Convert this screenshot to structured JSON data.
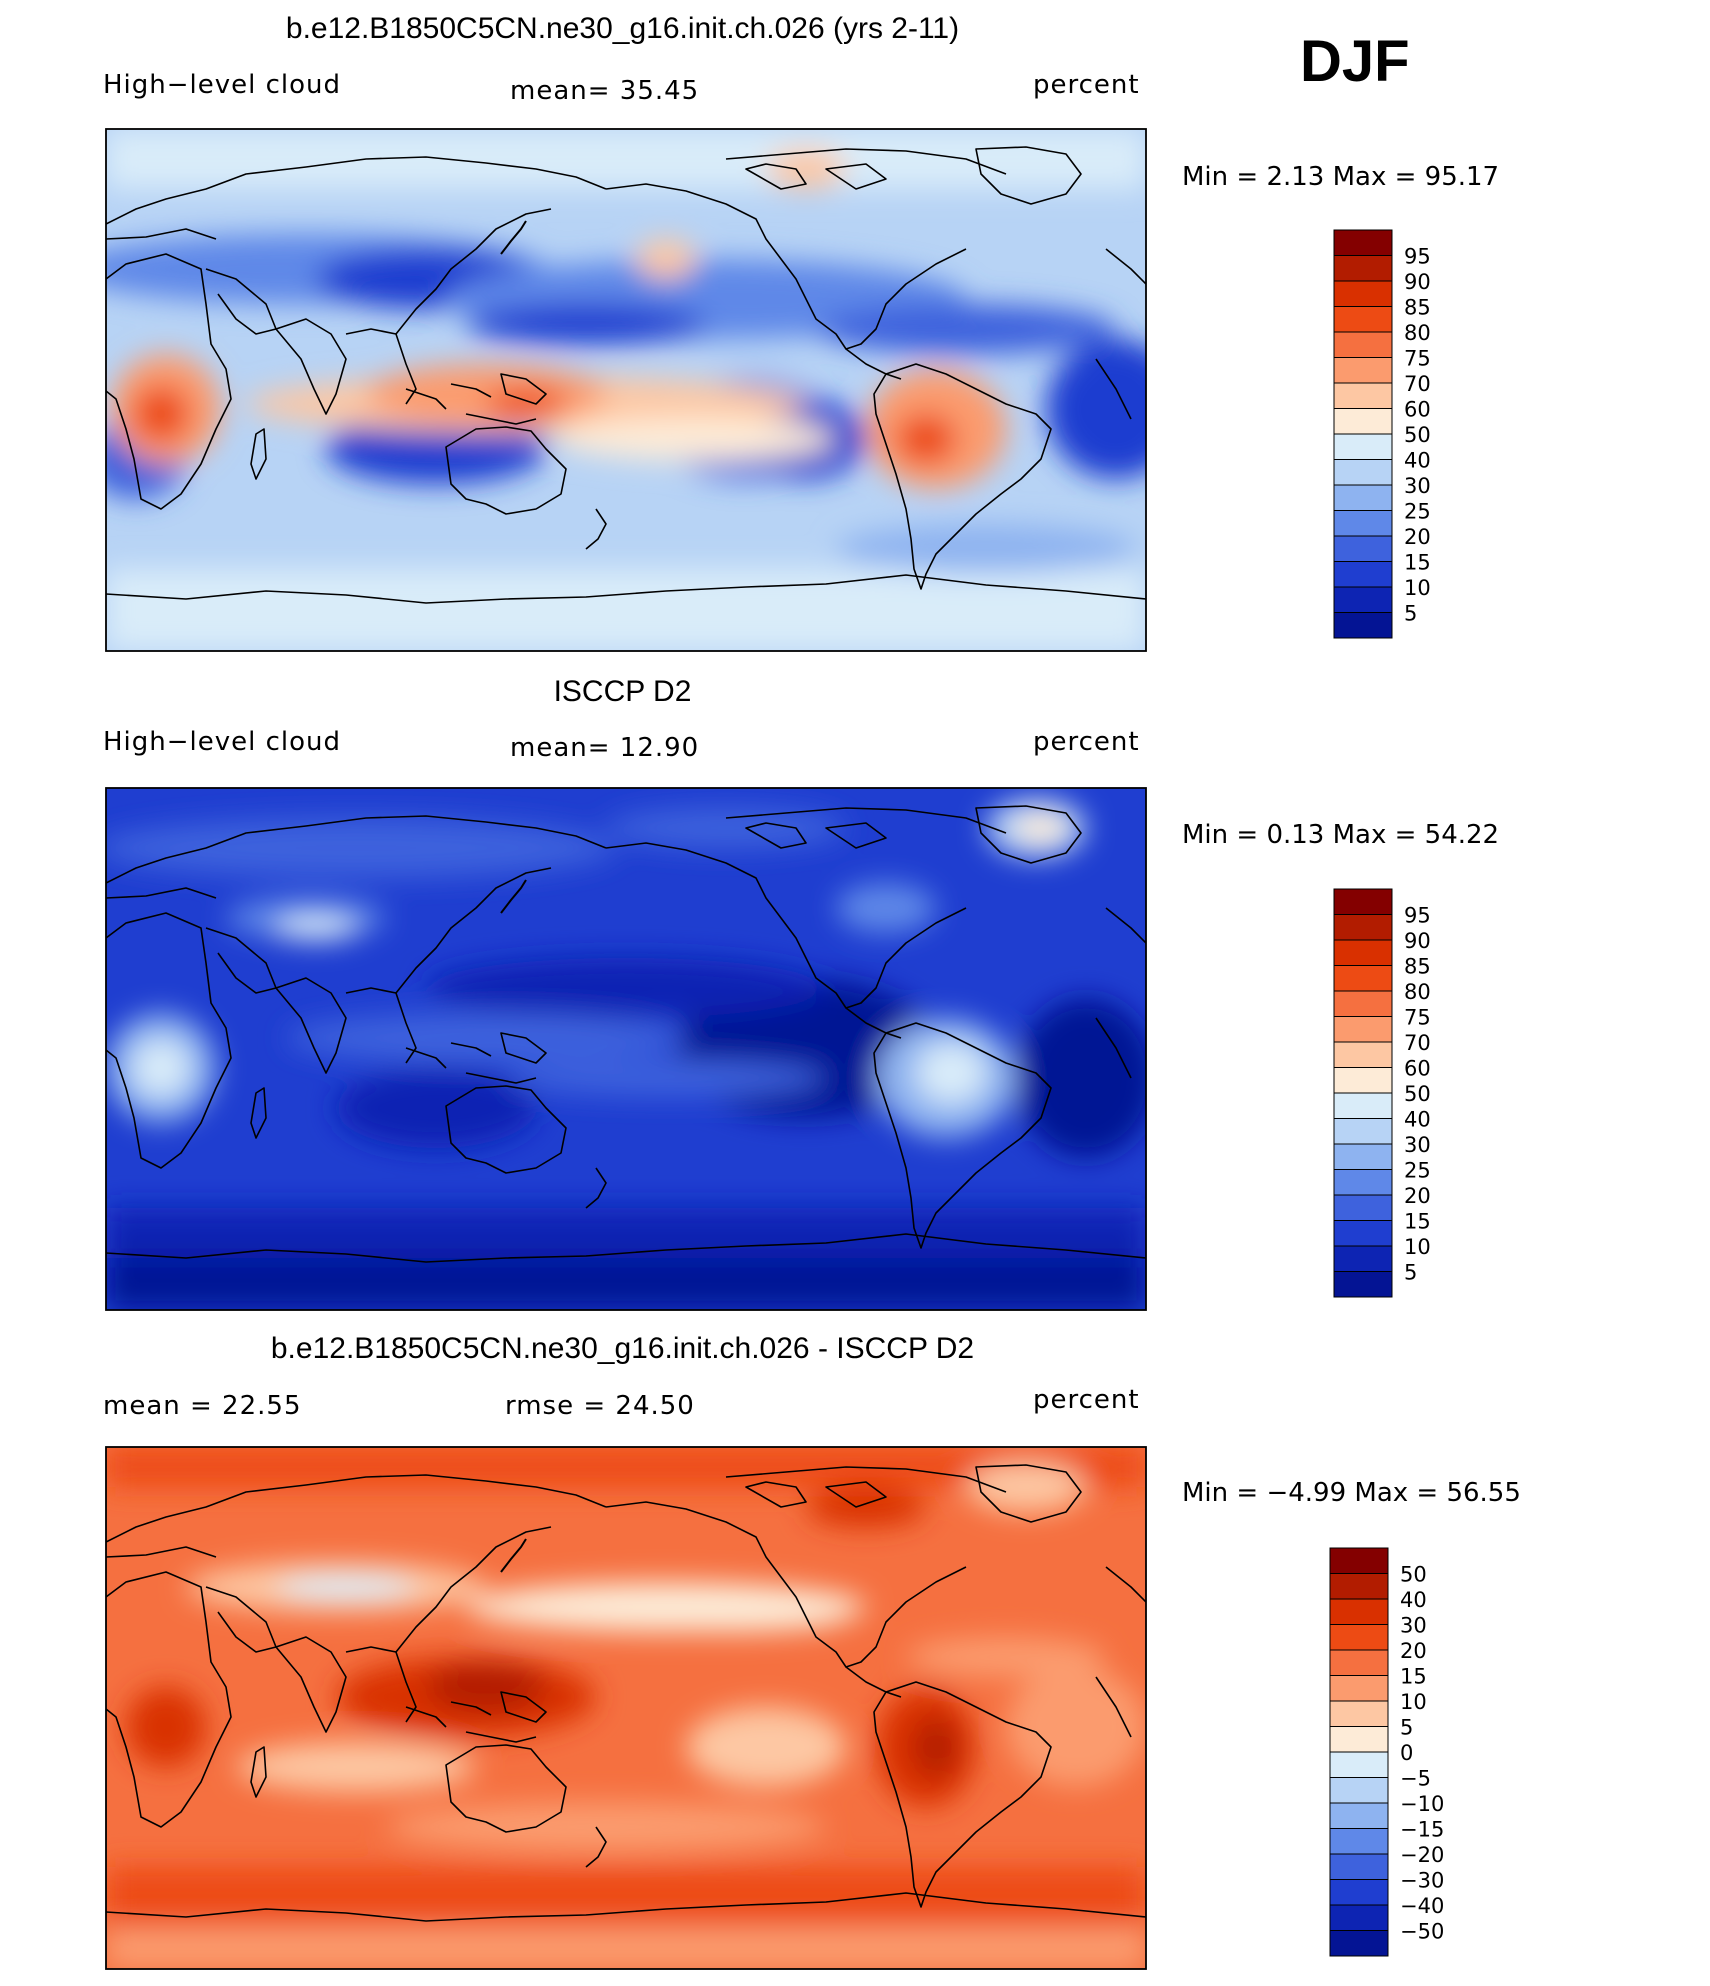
{
  "season": "DJF",
  "panels": [
    {
      "title": "b.e12.B1850C5CN.ne30_g16.init.ch.026 (yrs 2-11)",
      "left_label": "High−level cloud",
      "center_label": "mean=  35.45",
      "right_label": "percent",
      "min_max": "Min =    2.13 Max =   95.17",
      "map_data": {
        "mean": 35.45,
        "min": 2.13,
        "max": 95.17,
        "units": "percent",
        "variable": "High-level cloud"
      },
      "colorbar": {
        "labels": [
          "95",
          "90",
          "85",
          "80",
          "75",
          "70",
          "60",
          "50",
          "40",
          "30",
          "25",
          "20",
          "15",
          "10",
          "5"
        ],
        "colors": [
          "#840000",
          "#b21c00",
          "#d93000",
          "#ed4b14",
          "#f57040",
          "#fb9b6e",
          "#fdc7a3",
          "#fdebd7",
          "#d9ecf9",
          "#b7d3f5",
          "#8eb3f0",
          "#5f88e8",
          "#3e62dd",
          "#1f3ed0",
          "#0d24b3",
          "#041494"
        ]
      }
    },
    {
      "title": "ISCCP D2",
      "left_label": "High−level cloud",
      "center_label": "mean=  12.90",
      "right_label": "percent",
      "min_max": "Min =    0.13 Max =   54.22",
      "map_data": {
        "mean": 12.9,
        "min": 0.13,
        "max": 54.22,
        "units": "percent",
        "variable": "High-level cloud"
      },
      "colorbar": {
        "labels": [
          "95",
          "90",
          "85",
          "80",
          "75",
          "70",
          "60",
          "50",
          "40",
          "30",
          "25",
          "20",
          "15",
          "10",
          "5"
        ],
        "colors": [
          "#840000",
          "#b21c00",
          "#d93000",
          "#ed4b14",
          "#f57040",
          "#fb9b6e",
          "#fdc7a3",
          "#fdebd7",
          "#d9ecf9",
          "#b7d3f5",
          "#8eb3f0",
          "#5f88e8",
          "#3e62dd",
          "#1f3ed0",
          "#0d24b3",
          "#041494"
        ]
      }
    },
    {
      "title": "b.e12.B1850C5CN.ne30_g16.init.ch.026 - ISCCP D2",
      "left_label": "mean =   22.55",
      "center_label": "rmse =   24.50",
      "right_label": "percent",
      "min_max": "Min =  −4.99 Max =   56.55",
      "map_data": {
        "mean": 22.55,
        "rmse": 24.5,
        "min": -4.99,
        "max": 56.55,
        "units": "percent"
      },
      "colorbar": {
        "labels": [
          "50",
          "40",
          "30",
          "20",
          "15",
          "10",
          "5",
          "0",
          "−5",
          "−10",
          "−15",
          "−20",
          "−30",
          "−40",
          "−50"
        ],
        "colors": [
          "#840000",
          "#b21c00",
          "#d93000",
          "#ed4b14",
          "#f57040",
          "#fb9b6e",
          "#fdc7a3",
          "#fdebd7",
          "#d9ecf9",
          "#b7d3f5",
          "#8eb3f0",
          "#5f88e8",
          "#3e62dd",
          "#1f3ed0",
          "#0d24b3",
          "#041494"
        ]
      }
    }
  ]
}
